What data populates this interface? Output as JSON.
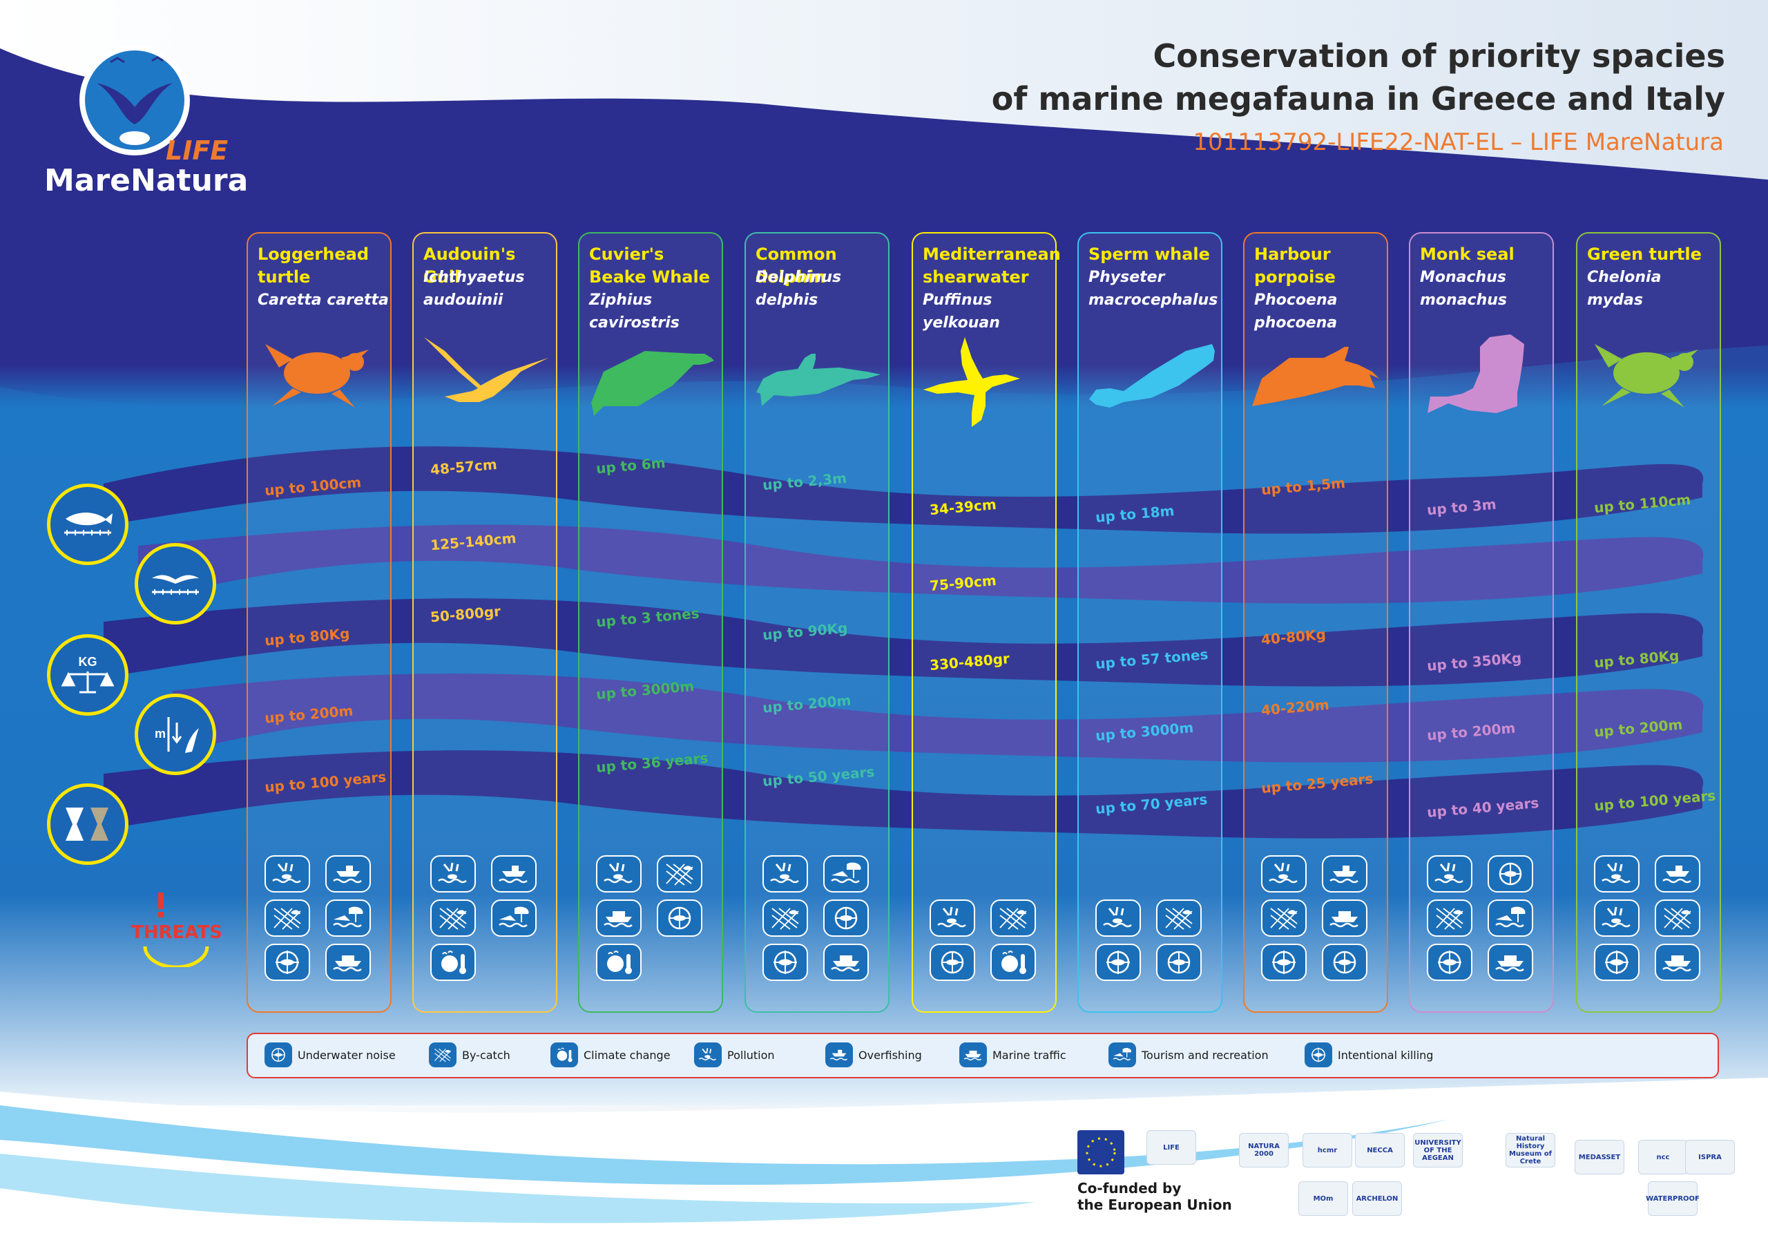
{
  "header": {
    "title_line1": "Conservation of priority spacies",
    "title_line2": "of marine megafauna in Greece and Italy",
    "subtitle": "101113792-LIFE22-NAT-EL – LIFE MareNatura"
  },
  "logo": {
    "life": "LIFE",
    "name": "MareNatura"
  },
  "colors": {
    "navy": "#2b2e8f",
    "sea": "#1f78c6",
    "orange": "#f07a28",
    "yellow": "#ffea00",
    "threat_red": "#e53935"
  },
  "side_icons": [
    {
      "icon": "length-ruler-fish-icon"
    },
    {
      "icon": "wingspan-bird-icon"
    },
    {
      "icon": "weight-scale-icon",
      "label": "KG"
    },
    {
      "icon": "depth-diving-icon",
      "label": "m"
    },
    {
      "icon": "lifespan-hourglass-icon"
    }
  ],
  "threats_label": "THREATS",
  "species": [
    {
      "name": "Loggerhead turtle",
      "scientific": "Caretta caretta",
      "color": "#f07a28",
      "silhouette": "turtle",
      "length": "up to 100cm",
      "wingspan": "",
      "weight": "up to 80Kg",
      "depth": "up to 200m",
      "lifespan": "up to 100 years",
      "threats": [
        "pollution",
        "overfishing",
        "by-catch",
        "tourism",
        "intentional-killing",
        "marine-traffic"
      ]
    },
    {
      "name": "Audouin's Gull",
      "scientific": "Ichthyaetus audouinii",
      "color": "#ffc83d",
      "silhouette": "gull",
      "length": "48-57cm",
      "wingspan": "125-140cm",
      "weight": "50-800gr",
      "depth": "",
      "lifespan": "",
      "threats": [
        "pollution",
        "overfishing",
        "by-catch",
        "tourism",
        "climate-change"
      ]
    },
    {
      "name": "Cuvier's Beake Whale",
      "scientific": "Ziphius cavirostris",
      "color": "#3fba5f",
      "silhouette": "beaked-whale",
      "length": "up to 6m",
      "wingspan": "",
      "weight": "up to 3 tones",
      "depth": "up to 3000m",
      "lifespan": "up to 36 years",
      "threats": [
        "pollution",
        "by-catch",
        "marine-traffic",
        "underwater-noise",
        "climate-change"
      ]
    },
    {
      "name": "Common dolphin",
      "scientific": "Delphinus delphis",
      "color": "#3dbfa8",
      "silhouette": "dolphin",
      "length": "up to 2,3m",
      "wingspan": "",
      "weight": "up to 90Kg",
      "depth": "up to 200m",
      "lifespan": "up to 50 years",
      "threats": [
        "pollution",
        "tourism",
        "by-catch",
        "underwater-noise",
        "intentional-killing",
        "marine-traffic"
      ]
    },
    {
      "name": "Mediterranean shearwater",
      "scientific": "Puffinus yelkouan",
      "color": "#fff200",
      "silhouette": "shearwater",
      "length": "34-39cm",
      "wingspan": "75-90cm",
      "weight": "330-480gr",
      "depth": "",
      "lifespan": "",
      "threats": [
        "pollution",
        "by-catch",
        "underwater-noise",
        "climate-change"
      ]
    },
    {
      "name": "Sperm whale",
      "scientific": "Physeter macrocephalus",
      "color": "#3cc3ee",
      "silhouette": "sperm-whale",
      "length": "up to 18m",
      "wingspan": "",
      "weight": "up to 57 tones",
      "depth": "up to 3000m",
      "lifespan": "up to 70 years",
      "threats": [
        "pollution",
        "by-catch",
        "intentional-killing",
        "underwater-noise"
      ]
    },
    {
      "name": "Harbour porpoise",
      "scientific": "Phocoena phocoena",
      "color": "#f07a28",
      "silhouette": "porpoise",
      "length": "up to 1,5m",
      "wingspan": "",
      "weight": "40-80Kg",
      "depth": "40-220m",
      "lifespan": "up to 25 years",
      "threats": [
        "pollution",
        "overfishing",
        "by-catch",
        "marine-traffic",
        "intentional-killing",
        "underwater-noise"
      ]
    },
    {
      "name": "Monk seal",
      "scientific": "Monachus monachus",
      "color": "#cc8dd0",
      "silhouette": "seal",
      "length": "up to 3m",
      "wingspan": "",
      "weight": "up to 350Kg",
      "depth": "up to 200m",
      "lifespan": "up to 40 years",
      "threats": [
        "pollution",
        "underwater-noise",
        "by-catch",
        "tourism",
        "intentional-killing",
        "marine-traffic"
      ]
    },
    {
      "name": "Green turtle",
      "scientific": "Chelonia mydas",
      "color": "#8dc63f",
      "silhouette": "turtle",
      "length": "up to 110cm",
      "wingspan": "",
      "weight": "up to 80Kg",
      "depth": "up to 200m",
      "lifespan": "up to 100 years",
      "threats": [
        "pollution",
        "overfishing",
        "pollution",
        "by-catch",
        "intentional-killing",
        "marine-traffic"
      ]
    }
  ],
  "legend": [
    {
      "icon": "underwater-noise",
      "label": "Underwater noise"
    },
    {
      "icon": "by-catch",
      "label": "By-catch"
    },
    {
      "icon": "climate-change",
      "label": "Climate change"
    },
    {
      "icon": "pollution",
      "label": "Pollution"
    },
    {
      "icon": "overfishing",
      "label": "Overfishing"
    },
    {
      "icon": "marine-traffic",
      "label": "Marine traffic"
    },
    {
      "icon": "tourism",
      "label": "Tourism and recreation"
    },
    {
      "icon": "intentional-killing",
      "label": "Intentional killing"
    }
  ],
  "footer": {
    "cofunded_line1": "Co-funded by",
    "cofunded_line2": "the European Union",
    "partners": [
      "LIFE",
      "NATURA 2000",
      "hcmr",
      "NECCA",
      "UNIVERSITY OF THE AEGEAN",
      "Natural History Museum of Crete",
      "MEDASSET",
      "ncc",
      "ISPRA",
      "ARCHELON",
      "MOm",
      "WATERPROOF"
    ]
  }
}
